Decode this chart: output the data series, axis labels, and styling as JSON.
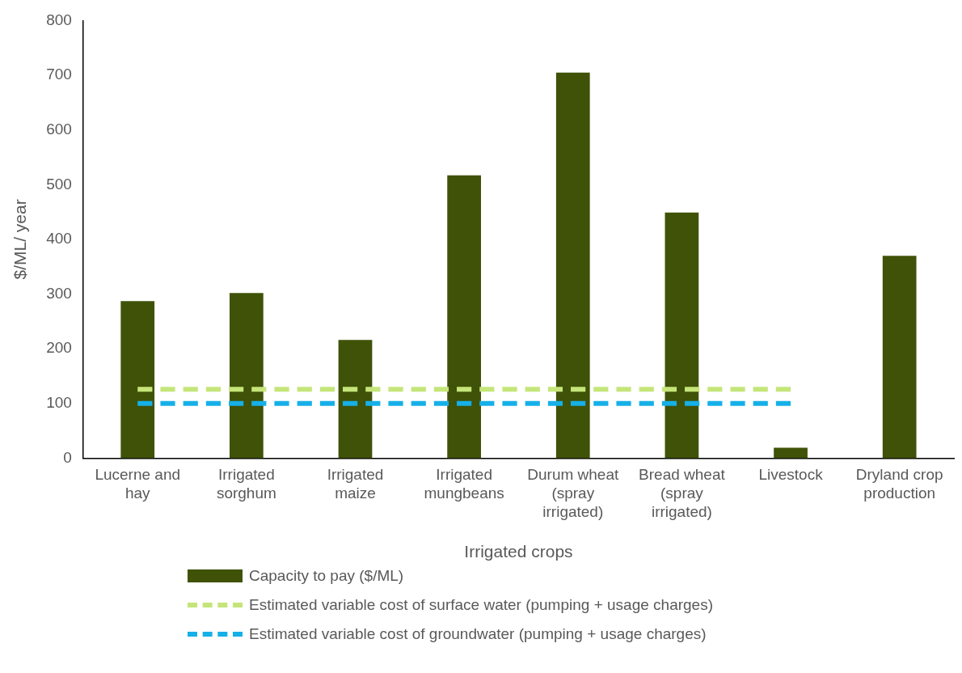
{
  "chart_data": {
    "type": "bar",
    "xlabel": "Irrigated crops",
    "ylabel": "$/ML/ year",
    "categories": [
      "Lucerne and hay",
      "Irrigated sorghum",
      "Irrigated maize",
      "Irrigated mungbeans",
      "Durum wheat (spray irrigated)",
      "Bread wheat (spray irrigated)",
      "Livestock",
      "Dryland crop production"
    ],
    "series": [
      {
        "name": "Capacity to pay ($/ML)",
        "color": "#3f5208",
        "values": [
          287,
          302,
          216,
          517,
          705,
          449,
          19,
          370
        ]
      },
      {
        "name": "Estimated variable cost of surface water  (pumping + usage charges)",
        "type": "line",
        "line_style": "dashed",
        "color": "#c5e57a",
        "values": [
          126,
          126,
          126,
          126,
          126,
          126,
          126,
          null
        ]
      },
      {
        "name": "Estimated variable cost of groundwater  (pumping + usage charges)",
        "type": "line",
        "line_style": "dashed",
        "color": "#16b0e8",
        "values": [
          100,
          100,
          100,
          100,
          100,
          100,
          100,
          null
        ]
      }
    ],
    "ylim": [
      0,
      800
    ],
    "yticks": [
      0,
      100,
      200,
      300,
      400,
      500,
      600,
      700,
      800
    ],
    "grid": false,
    "legend": "bottom",
    "marker": "none"
  }
}
